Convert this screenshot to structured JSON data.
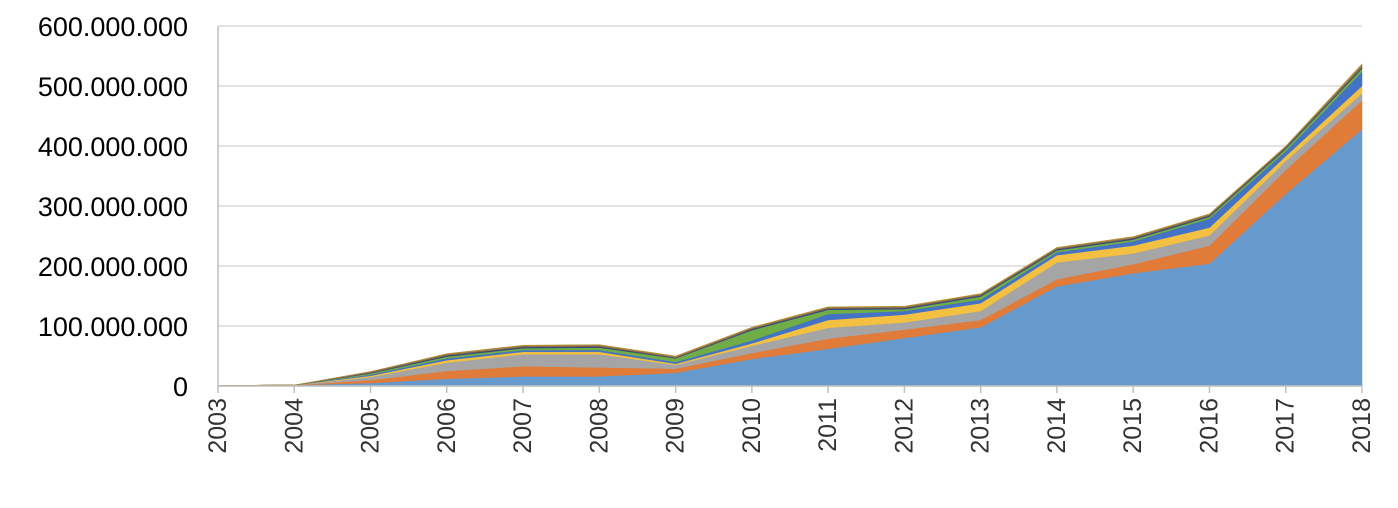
{
  "chart_data": {
    "type": "area",
    "stacked": true,
    "title": "",
    "xlabel": "",
    "ylabel": "",
    "ylim": [
      0,
      600000000
    ],
    "grid": true,
    "legend": "none",
    "y_ticks": [
      0,
      100000000,
      200000000,
      300000000,
      400000000,
      500000000,
      600000000
    ],
    "y_tick_labels": [
      "0",
      "100.000.000",
      "200.000.000",
      "300.000.000",
      "400.000.000",
      "500.000.000",
      "600.000.000"
    ],
    "x": [
      "2003",
      "2004",
      "2005",
      "2006",
      "2007",
      "2008",
      "2009",
      "2010",
      "2011",
      "2012",
      "2013",
      "2014",
      "2015",
      "2016",
      "2017",
      "2018"
    ],
    "series": [
      {
        "color": "#6699CC",
        "values": [
          1000000,
          1500000,
          5000000,
          12000000,
          16000000,
          16000000,
          22000000,
          45000000,
          62000000,
          80000000,
          98000000,
          166000000,
          188000000,
          204000000,
          320000000,
          428000000
        ]
      },
      {
        "color": "#E07B39",
        "values": [
          0,
          0,
          5000000,
          13000000,
          17000000,
          15000000,
          7000000,
          10000000,
          17000000,
          14000000,
          12000000,
          12000000,
          15000000,
          30000000,
          40000000,
          48000000
        ]
      },
      {
        "color": "#A5A5A5",
        "values": [
          0,
          0,
          5000000,
          14000000,
          20000000,
          22000000,
          6000000,
          12000000,
          18000000,
          12000000,
          15000000,
          28000000,
          18000000,
          17000000,
          15000000,
          12000000
        ]
      },
      {
        "color": "#F4C042",
        "values": [
          0,
          0,
          2000000,
          4000000,
          4000000,
          4000000,
          2000000,
          4000000,
          13000000,
          13000000,
          13000000,
          12000000,
          13000000,
          13000000,
          8000000,
          12000000
        ]
      },
      {
        "color": "#4472C4",
        "values": [
          0,
          0,
          2000000,
          3000000,
          3000000,
          3000000,
          3000000,
          5000000,
          10000000,
          6000000,
          6000000,
          5000000,
          7000000,
          15000000,
          8000000,
          24000000
        ]
      },
      {
        "color": "#70AD47",
        "values": [
          0,
          0,
          2000000,
          3000000,
          3000000,
          4000000,
          6000000,
          17000000,
          7000000,
          3000000,
          5000000,
          3000000,
          3000000,
          3000000,
          4000000,
          5000000
        ]
      },
      {
        "color": "#2F4F7F",
        "values": [
          0,
          0,
          1000000,
          2000000,
          2000000,
          2000000,
          1000000,
          2000000,
          2000000,
          2000000,
          2000000,
          2000000,
          2000000,
          2000000,
          2000000,
          2000000
        ]
      },
      {
        "color": "#9E5A2A",
        "values": [
          0,
          0,
          1000000,
          1000000,
          1000000,
          1000000,
          1000000,
          1000000,
          1000000,
          1000000,
          1000000,
          1000000,
          1000000,
          1000000,
          1000000,
          2000000
        ]
      },
      {
        "color": "#7A7A7A",
        "values": [
          0,
          0,
          1000000,
          1000000,
          1000000,
          1000000,
          1000000,
          1000000,
          1000000,
          1000000,
          1000000,
          1000000,
          1000000,
          1000000,
          1000000,
          2000000
        ]
      },
      {
        "color": "#B8902A",
        "values": [
          0,
          0,
          0,
          1000000,
          1000000,
          1000000,
          1000000,
          1000000,
          1000000,
          1000000,
          1000000,
          1000000,
          1000000,
          1000000,
          1000000,
          2000000
        ]
      }
    ]
  }
}
